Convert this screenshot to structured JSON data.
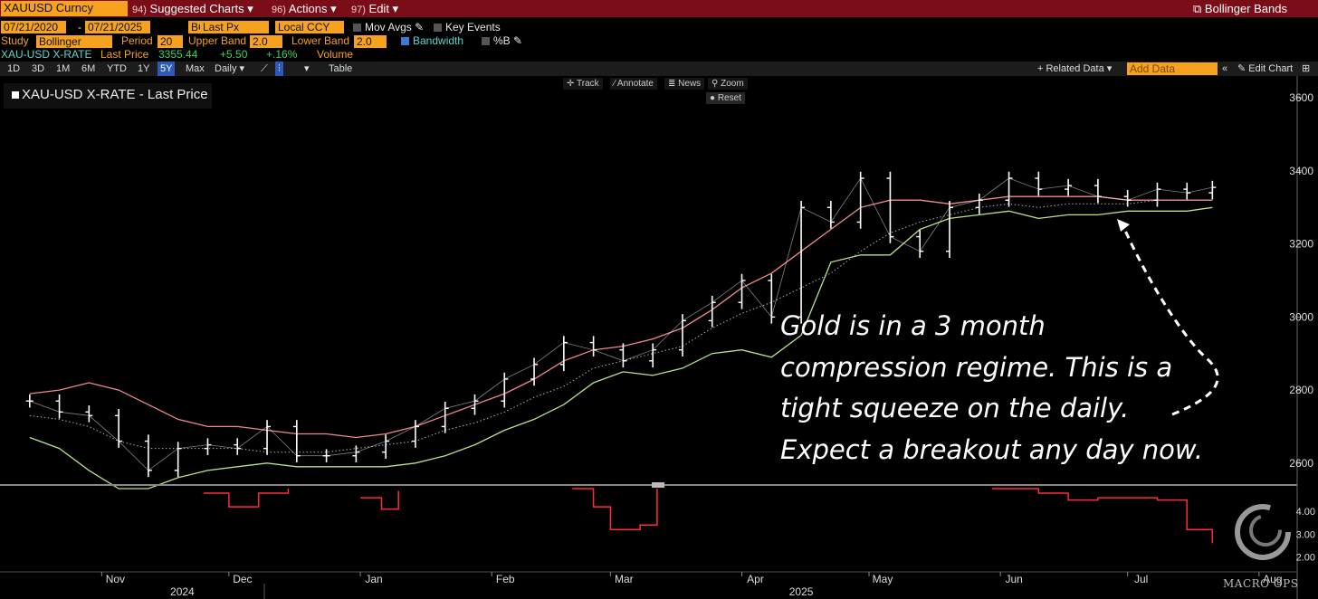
{
  "header": {
    "security": "XAUUSD Curncy",
    "menu": [
      {
        "num": "94)",
        "label": "Suggested Charts"
      },
      {
        "num": "96)",
        "label": "Actions"
      },
      {
        "num": "97)",
        "label": "Edit"
      }
    ],
    "chart_type_label": "Bollinger Bands"
  },
  "row2": {
    "start_date": "07/21/2020",
    "end_date": "07/21/2025",
    "source": "BGN",
    "field": "Last Px",
    "currency": "Local CCY",
    "mov_avgs": "Mov Avgs",
    "key_events": "Key Events"
  },
  "row3": {
    "study_label": "Study",
    "study_value": "Bollinger",
    "period_label": "Period",
    "period_value": "20",
    "upper_label": "Upper Band",
    "upper_value": "2.0",
    "lower_label": "Lower Band",
    "lower_value": "2.0",
    "bandwidth": "Bandwidth",
    "pctb": "%B"
  },
  "row4": {
    "ticker": "XAU-USD X-RATE",
    "last_price_label": "Last Price",
    "last_price": "3355.44",
    "change": "+5.50",
    "change_pct": "+.16%",
    "volume": "Volume"
  },
  "toolbar": {
    "periods": [
      "1D",
      "3D",
      "1M",
      "6M",
      "YTD",
      "1Y",
      "5Y",
      "Max"
    ],
    "selected_period": "5Y",
    "frequency": "Daily",
    "table": "Table",
    "related_data": "+ Related Data",
    "add_data_placeholder": "Add Data",
    "edit_chart": "Edit Chart"
  },
  "chart_controls": {
    "track": "Track",
    "annotate": "Annotate",
    "news": "News",
    "zoom": "Zoom",
    "reset": "Reset"
  },
  "legend": {
    "label": "XAU-USD X-RATE - Last Price"
  },
  "annotation": {
    "lines": [
      "Gold is in a 3 month",
      "compression regime. This is a",
      "tight squeeze on the daily.",
      "Expect a breakout any day now."
    ]
  },
  "watermark": "MACRO OPS",
  "colors": {
    "upper_band": "#ef8a8a",
    "lower_band": "#b8e38a",
    "middle_band": "#b0b0b0",
    "price": "#ffffff",
    "bandwidth": "#ff2a3a",
    "header_bg": "#7a0d17",
    "field_orange": "#f6a21e",
    "last_price_green": "#36d36a"
  },
  "chart_data": {
    "type": "line",
    "xlabel": "",
    "ylabel": "",
    "x_ticks": [
      "Nov",
      "Dec",
      "Jan",
      "Feb",
      "Mar",
      "Apr",
      "May",
      "Jun",
      "Jul",
      "Aug"
    ],
    "years": [
      "2024",
      "2025"
    ],
    "y_ticks": [
      2600,
      2800,
      3000,
      3200,
      3400,
      3600
    ],
    "ylim": [
      2530,
      3700
    ],
    "x": [
      "2024-10-15",
      "2024-10-22",
      "2024-10-29",
      "2024-11-05",
      "2024-11-12",
      "2024-11-19",
      "2024-11-26",
      "2024-12-03",
      "2024-12-10",
      "2024-12-17",
      "2024-12-24",
      "2024-12-31",
      "2025-01-07",
      "2025-01-14",
      "2025-01-21",
      "2025-01-28",
      "2025-02-04",
      "2025-02-11",
      "2025-02-18",
      "2025-02-25",
      "2025-03-04",
      "2025-03-11",
      "2025-03-18",
      "2025-03-25",
      "2025-04-01",
      "2025-04-08",
      "2025-04-15",
      "2025-04-22",
      "2025-04-29",
      "2025-05-06",
      "2025-05-13",
      "2025-05-20",
      "2025-05-27",
      "2025-06-03",
      "2025-06-10",
      "2025-06-17",
      "2025-06-24",
      "2025-07-01",
      "2025-07-08",
      "2025-07-15",
      "2025-07-21"
    ],
    "series": [
      {
        "values": [
          2770,
          2740,
          2730,
          2660,
          2580,
          2640,
          2650,
          2640,
          2700,
          2620,
          2620,
          2630,
          2660,
          2700,
          2750,
          2770,
          2830,
          2870,
          2930,
          2910,
          2880,
          2910,
          2990,
          3040,
          3100,
          3000,
          3300,
          3260,
          3380,
          3220,
          3180,
          3300,
          3320,
          3380,
          3350,
          3360,
          3330,
          3320,
          3350,
          3340,
          3355
        ]
      },
      {
        "values": [
          2790,
          2800,
          2820,
          2800,
          2760,
          2720,
          2700,
          2700,
          2690,
          2680,
          2680,
          2670,
          2680,
          2700,
          2730,
          2760,
          2790,
          2830,
          2880,
          2910,
          2920,
          2940,
          2970,
          3020,
          3080,
          3120,
          3180,
          3240,
          3300,
          3320,
          3320,
          3310,
          3320,
          3330,
          3330,
          3330,
          3330,
          3320,
          3320,
          3320,
          3320
        ]
      },
      {
        "values": [
          2730,
          2720,
          2700,
          2660,
          2640,
          2640,
          2640,
          2640,
          2630,
          2630,
          2630,
          2640,
          2650,
          2660,
          2690,
          2710,
          2740,
          2780,
          2810,
          2860,
          2880,
          2900,
          2920,
          2970,
          3010,
          3040,
          3080,
          3120,
          3180,
          3230,
          3260,
          3280,
          3300,
          3310,
          3300,
          3310,
          3310,
          3310,
          3320,
          3320,
          3320
        ]
      },
      {
        "values": [
          2670,
          2640,
          2580,
          2530,
          2530,
          2560,
          2580,
          2590,
          2600,
          2590,
          2590,
          2590,
          2590,
          2600,
          2620,
          2650,
          2690,
          2720,
          2760,
          2820,
          2850,
          2840,
          2860,
          2900,
          2910,
          2890,
          2950,
          3150,
          3170,
          3170,
          3240,
          3270,
          3280,
          3290,
          3270,
          3280,
          3280,
          3290,
          3290,
          3290,
          3300
        ]
      }
    ],
    "bandwidth": {
      "name": "Bandwidth",
      "y_ticks": [
        2.0,
        3.0,
        4.0
      ],
      "ylim": [
        1.5,
        5.0
      ],
      "segments": [
        {
          "x": [
            "2024-11-25",
            "2024-12-01",
            "2024-12-08",
            "2024-12-15"
          ],
          "values": [
            4.8,
            4.2,
            4.8,
            5.0
          ]
        },
        {
          "x": [
            "2025-01-01",
            "2025-01-06",
            "2025-01-10"
          ],
          "values": [
            4.6,
            4.1,
            4.9
          ]
        },
        {
          "x": [
            "2025-02-20",
            "2025-02-25",
            "2025-03-01",
            "2025-03-08",
            "2025-03-12"
          ],
          "values": [
            5.0,
            4.2,
            3.2,
            3.4,
            5.0
          ]
        },
        {
          "x": [
            "2025-05-30",
            "2025-06-10",
            "2025-06-17",
            "2025-06-24",
            "2025-07-01",
            "2025-07-08",
            "2025-07-15",
            "2025-07-21"
          ],
          "values": [
            5.0,
            4.8,
            4.5,
            4.6,
            4.6,
            4.5,
            3.2,
            2.6
          ]
        }
      ]
    }
  }
}
